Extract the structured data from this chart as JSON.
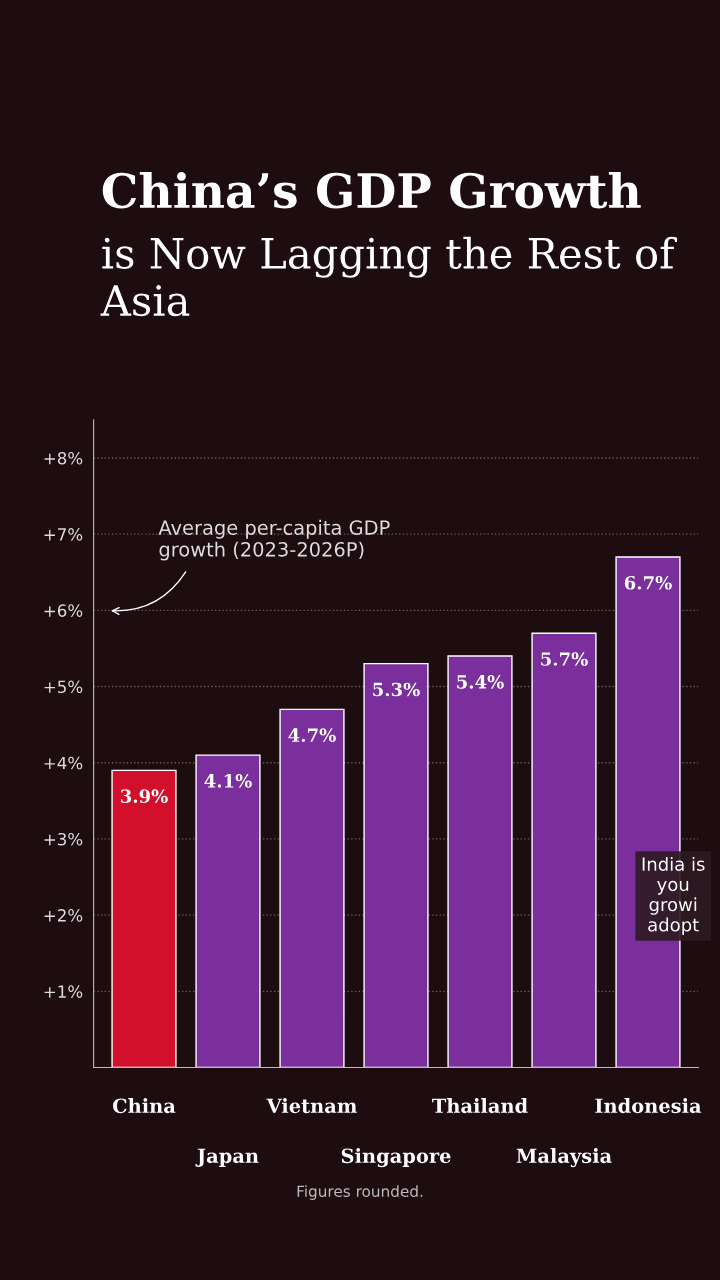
{
  "chart_data": {
    "type": "bar",
    "title": "China’s GDP Growth",
    "subtitle": "is Now Lagging the Rest of Asia",
    "categories": [
      "China",
      "Japan",
      "Vietnam",
      "Singapore",
      "Thailand",
      "Malaysia",
      "Indonesia"
    ],
    "values": [
      3.9,
      4.1,
      4.7,
      5.3,
      5.4,
      5.7,
      6.7
    ],
    "colors": [
      "#d3102b",
      "#7a2f9c",
      "#7a2f9c",
      "#7a2f9c",
      "#7a2f9c",
      "#7a2f9c",
      "#7a2f9c"
    ],
    "value_labels": [
      "3.9%",
      "4.1%",
      "4.7%",
      "5.3%",
      "5.4%",
      "5.7%",
      "6.7%"
    ],
    "ylim": [
      0,
      8.5
    ],
    "yticks": [
      {
        "value": 1,
        "label": "+1%"
      },
      {
        "value": 2,
        "label": "+2%"
      },
      {
        "value": 3,
        "label": "+3%"
      },
      {
        "value": 4,
        "label": "+4%"
      },
      {
        "value": 5,
        "label": "+5%"
      },
      {
        "value": 6,
        "label": "+6%"
      },
      {
        "value": 7,
        "label": "+7%"
      },
      {
        "value": 8,
        "label": "+8%"
      }
    ],
    "grid": "y",
    "legend": false,
    "annotations": [
      "Average per-capita GDP\ngrowth (2023-2026P)",
      "India is\nyou\ngrowi\nadopt",
      "Figures rounded."
    ]
  }
}
